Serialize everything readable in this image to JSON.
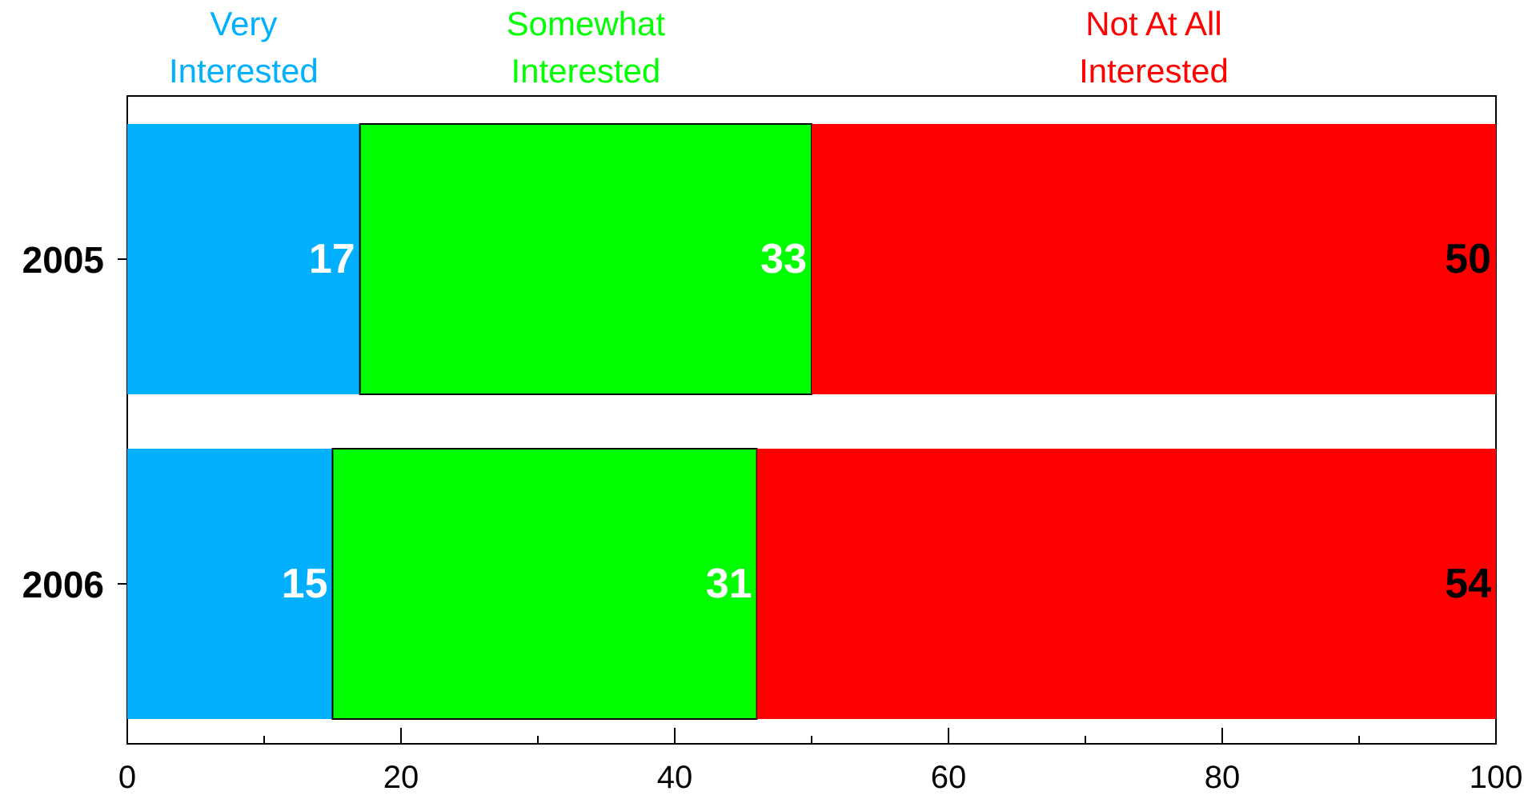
{
  "chart_data": {
    "type": "bar",
    "orientation": "horizontal",
    "stacked": true,
    "categories": [
      "2005",
      "2006"
    ],
    "series": [
      {
        "name": "Very Interested",
        "label_lines": [
          "Very",
          "Interested"
        ],
        "values": [
          17,
          15
        ],
        "color": "#00b0ff",
        "value_label_color": "#ffffff"
      },
      {
        "name": "Somewhat Interested",
        "label_lines": [
          "Somewhat",
          "Interested"
        ],
        "values": [
          33,
          31
        ],
        "color": "#00ff00",
        "value_label_color": "#ffffff"
      },
      {
        "name": "Not At All Interested",
        "label_lines": [
          "Not At All",
          "Interested"
        ],
        "values": [
          50,
          54
        ],
        "color": "#ff0000",
        "value_label_color": "#000000"
      }
    ],
    "xlim": [
      0,
      100
    ],
    "x_major_ticks": [
      0,
      20,
      40,
      60,
      80,
      100
    ],
    "x_minor_ticks": [
      10,
      30,
      50,
      70,
      90
    ],
    "title": "",
    "xlabel": "",
    "ylabel": "",
    "grid": false,
    "legend": "top"
  }
}
